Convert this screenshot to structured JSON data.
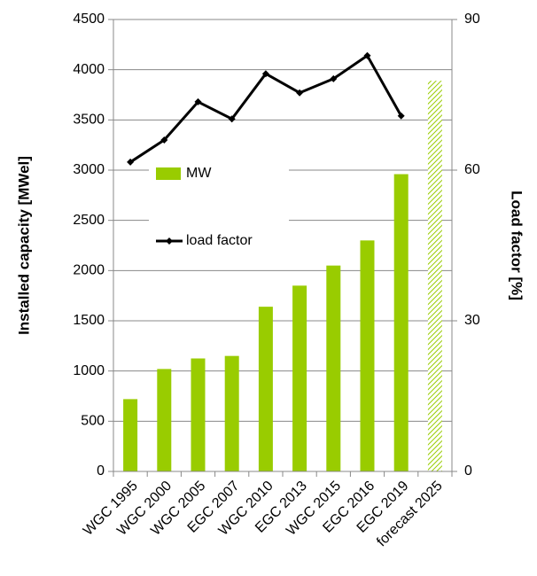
{
  "chart_data": {
    "type": "bar",
    "categories": [
      "WGC 1995",
      "WGC 2000",
      "WGC 2005",
      "EGC 2007",
      "WGC 2010",
      "EGC 2013",
      "WGC 2015",
      "EGC 2016",
      "EGC 2019",
      "forecast 2025"
    ],
    "y_label": "Installed capacity [MWel]",
    "y2_label": "Load factor [%]",
    "ylim": [
      0,
      4500
    ],
    "yticks": [
      0,
      500,
      1000,
      1500,
      2000,
      2500,
      3000,
      3500,
      4000,
      4500
    ],
    "y2lim": [
      0,
      90
    ],
    "y2ticks": [
      0,
      30,
      60,
      90
    ],
    "grid": true,
    "legend": "inside-left",
    "hatched_index": 9,
    "series": [
      {
        "name": "MW",
        "type": "bar",
        "color": "#99cc00",
        "values": [
          720,
          1020,
          1125,
          1150,
          1640,
          1850,
          2050,
          2300,
          2960,
          3890
        ]
      },
      {
        "name": "load factor",
        "type": "line",
        "axis": "y2",
        "color": "#000000",
        "values": [
          61.6,
          66,
          73.6,
          70.2,
          79.2,
          75.4,
          78.2,
          82.8,
          70.8,
          null
        ]
      }
    ]
  }
}
